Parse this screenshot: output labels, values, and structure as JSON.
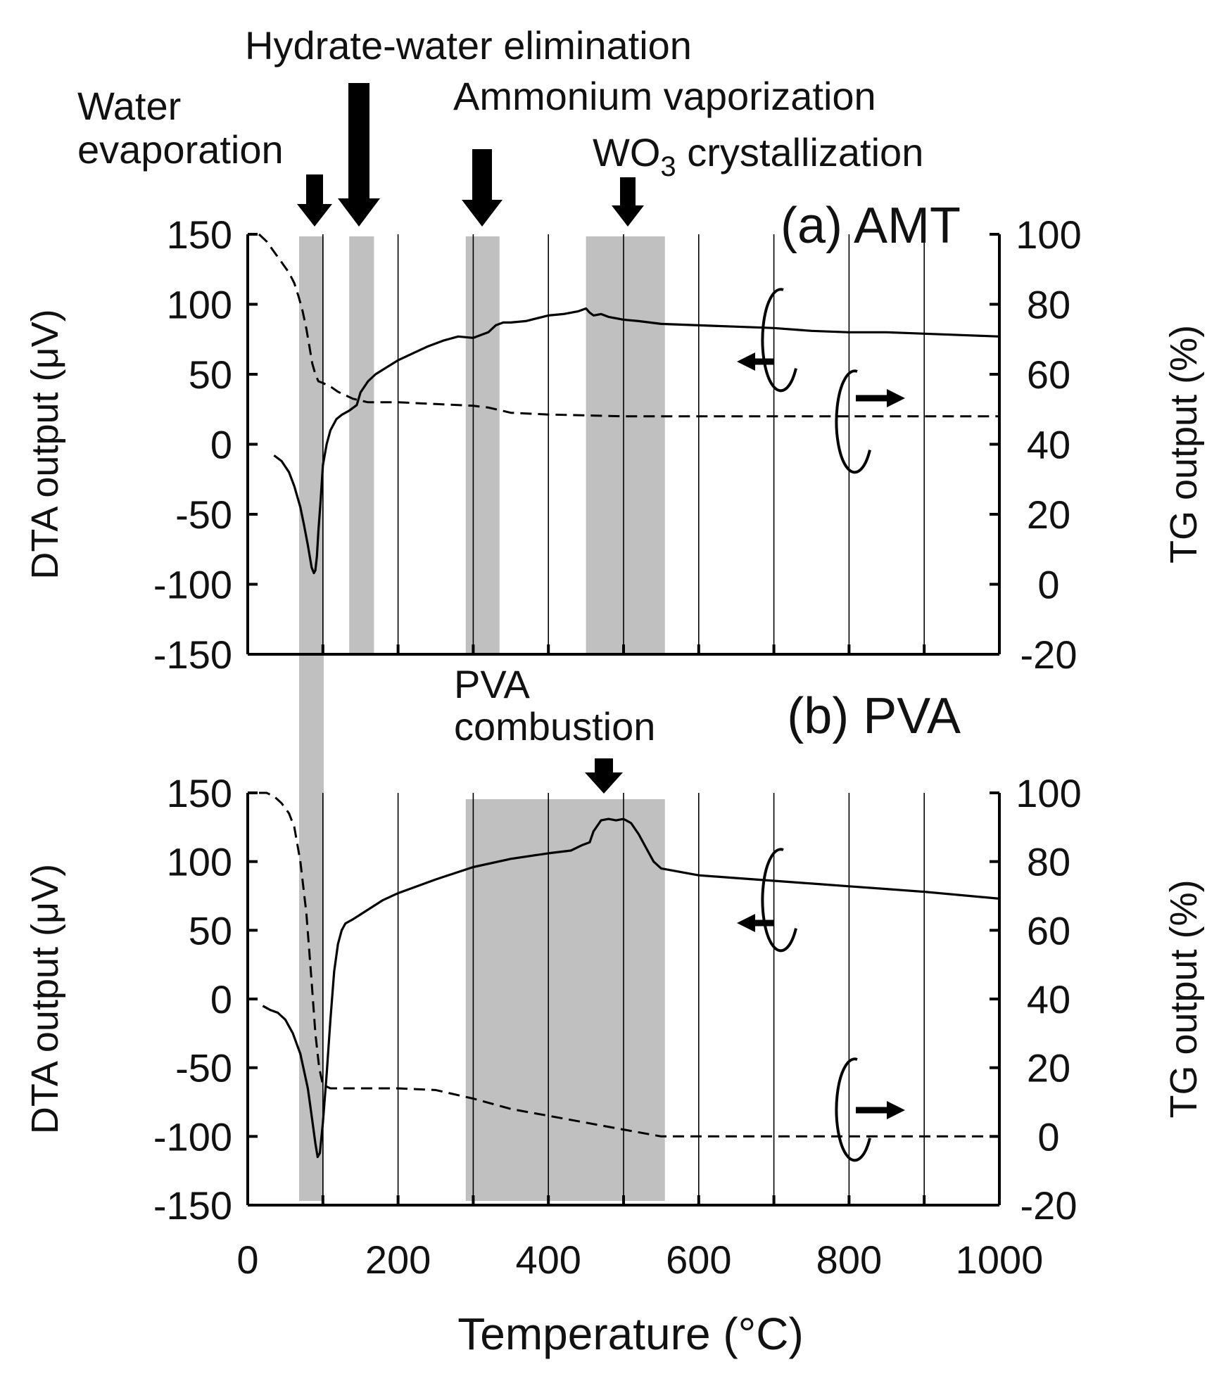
{
  "chart_data": [
    {
      "panel": "(a) AMT",
      "type": "line",
      "xlim": [
        0,
        1000
      ],
      "left_axis": {
        "label": "DTA output (μV)",
        "ylim": [
          -150,
          150
        ],
        "ticks": [
          "150",
          "100",
          "50",
          "0",
          "-50",
          "-100",
          "-150"
        ]
      },
      "right_axis": {
        "label": "TG output (%)",
        "ylim": [
          -20,
          100
        ],
        "ticks": [
          "100",
          "80",
          "60",
          "40",
          "20",
          "0",
          "-20"
        ]
      },
      "grid_x": [
        100,
        200,
        300,
        400,
        500,
        600,
        700,
        800,
        900
      ],
      "shaded_ranges": [
        [
          75,
          105
        ],
        [
          135,
          168
        ],
        [
          290,
          335
        ],
        [
          450,
          555
        ]
      ],
      "annotations": [
        {
          "text": "Water",
          "x": 92
        },
        {
          "text": "evaporation",
          "x": 92
        },
        {
          "text": "Hydrate-water elimination",
          "x": 152
        },
        {
          "text": "Ammonium vaporization",
          "x": 318
        },
        {
          "text": "WO",
          "sub": "3",
          "rest": " crystallization",
          "x": 505
        }
      ],
      "series": [
        {
          "axis": "left",
          "style": "solid",
          "x": [
            35,
            45,
            55,
            62,
            70,
            75,
            80,
            85,
            88,
            90,
            92,
            94,
            97,
            100,
            105,
            110,
            118,
            125,
            135,
            145,
            150,
            160,
            170,
            185,
            200,
            220,
            240,
            260,
            280,
            300,
            320,
            330,
            340,
            350,
            370,
            400,
            420,
            440,
            450,
            455,
            460,
            470,
            480,
            490,
            500,
            520,
            550,
            600,
            650,
            700,
            750,
            800,
            850,
            900,
            950,
            1000
          ],
          "y": [
            -8,
            -12,
            -20,
            -30,
            -45,
            -58,
            -72,
            -88,
            -92,
            -90,
            -80,
            -62,
            -40,
            -15,
            0,
            10,
            18,
            21,
            24,
            28,
            37,
            45,
            50,
            55,
            60,
            65,
            70,
            74,
            77,
            76,
            80,
            85,
            87,
            87,
            88,
            92,
            93,
            95,
            97,
            94,
            92,
            93,
            91,
            90,
            89,
            88,
            86,
            85,
            84,
            83,
            81,
            80,
            80,
            79,
            78,
            77
          ]
        },
        {
          "axis": "right",
          "style": "dashed",
          "x": [
            15,
            25,
            35,
            45,
            55,
            62,
            68,
            73,
            78,
            82,
            86,
            90,
            94,
            100,
            110,
            120,
            140,
            160,
            200,
            250,
            300,
            320,
            340,
            350,
            400,
            500,
            600,
            700,
            800,
            900,
            1000
          ],
          "y": [
            100,
            98,
            95,
            92,
            89,
            86,
            82,
            78,
            73,
            68,
            63,
            60,
            58,
            57.5,
            56.5,
            55,
            53,
            52,
            52,
            51.5,
            51,
            50.5,
            49.5,
            49,
            48.5,
            48,
            48,
            48,
            48,
            48,
            48
          ]
        }
      ],
      "arrows": {
        "dta": "left",
        "tg": "right"
      }
    },
    {
      "panel": "(b) PVA",
      "type": "line",
      "xlim": [
        0,
        1000
      ],
      "xlabel": "Temperature (°C)",
      "x_ticks": [
        "0",
        "200",
        "400",
        "600",
        "800",
        "1000"
      ],
      "left_axis": {
        "label": "DTA output (μV)",
        "ylim": [
          -150,
          150
        ],
        "ticks": [
          "150",
          "100",
          "50",
          "0",
          "-50",
          "-100",
          "-150"
        ]
      },
      "right_axis": {
        "label": "TG output (%)",
        "ylim": [
          -20,
          100
        ],
        "ticks": [
          "100",
          "80",
          "60",
          "40",
          "20",
          "0",
          "-20"
        ]
      },
      "grid_x": [
        100,
        200,
        300,
        400,
        500,
        600,
        700,
        800,
        900
      ],
      "shaded_ranges": [
        [
          75,
          105
        ],
        [
          290,
          555
        ]
      ],
      "annotations": [
        {
          "text": "PVA",
          "x": 330
        },
        {
          "text": "combustion",
          "x": 330
        },
        {
          "arrow_x": 478
        }
      ],
      "series": [
        {
          "axis": "left",
          "style": "solid",
          "x": [
            20,
            30,
            40,
            50,
            60,
            70,
            80,
            85,
            90,
            93,
            96,
            100,
            105,
            110,
            115,
            120,
            125,
            130,
            140,
            160,
            180,
            200,
            250,
            300,
            350,
            400,
            430,
            445,
            455,
            460,
            470,
            480,
            490,
            500,
            510,
            520,
            530,
            540,
            550,
            600,
            650,
            700,
            750,
            800,
            900,
            1000
          ],
          "y": [
            -5,
            -8,
            -10,
            -15,
            -25,
            -40,
            -65,
            -85,
            -105,
            -115,
            -112,
            -90,
            -55,
            -15,
            20,
            40,
            50,
            55,
            58,
            65,
            72,
            77,
            87,
            96,
            102,
            106,
            108,
            112,
            114,
            122,
            130,
            131,
            130,
            131,
            128,
            120,
            110,
            100,
            95,
            90,
            88,
            86,
            84,
            82,
            78,
            73
          ]
        },
        {
          "axis": "right",
          "style": "dashed",
          "x": [
            15,
            25,
            35,
            45,
            55,
            62,
            70,
            78,
            85,
            90,
            95,
            100,
            110,
            130,
            160,
            200,
            250,
            300,
            350,
            400,
            450,
            500,
            550,
            600,
            700,
            800,
            900,
            1000
          ],
          "y": [
            100,
            100,
            99,
            97,
            94,
            90,
            80,
            65,
            45,
            30,
            20,
            15,
            14,
            14,
            14,
            14,
            13.5,
            11,
            8,
            6,
            4,
            2,
            0,
            0,
            0,
            0,
            0,
            0
          ]
        }
      ],
      "arrows": {
        "dta": "left",
        "tg": "right"
      }
    }
  ]
}
